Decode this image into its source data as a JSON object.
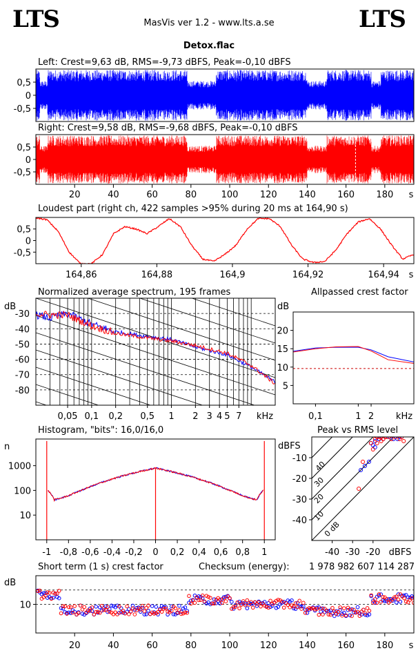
{
  "header": {
    "logo_left": "LTS",
    "logo_right": "LTS",
    "app_title": "MasVis ver 1.2 - www.lts.a.se",
    "file_name": "Detox.flac"
  },
  "chart_data": [
    {
      "id": "left",
      "type": "line",
      "title": "Left: Crest=9,63 dB, RMS=-9,73 dBFS, Peak=-0,10 dBFS",
      "series": [
        {
          "color": "#0000ff"
        }
      ],
      "ytick_labels": [
        "0,5",
        "0",
        "-0,5"
      ],
      "ylim": [
        -1,
        1
      ],
      "xlim": [
        0,
        195
      ],
      "quiet_segments_s": [
        [
          2,
          6
        ],
        [
          78,
          93
        ],
        [
          140,
          150
        ],
        [
          173,
          178
        ]
      ],
      "loud_envelope": 0.97,
      "quiet_envelope": 0.55
    },
    {
      "id": "right",
      "type": "line",
      "title": "Right: Crest=9,58 dB, RMS=-9,68 dBFS, Peak=-0,10 dBFS",
      "series": [
        {
          "color": "#ff0000"
        }
      ],
      "ytick_labels": [
        "0,5",
        "0",
        "-0,5"
      ],
      "ylim": [
        -1,
        1
      ],
      "xlim": [
        0,
        195
      ],
      "xticks": [
        20,
        40,
        60,
        80,
        100,
        120,
        140,
        160,
        180
      ],
      "tick_labels": [
        "20",
        "40",
        "60",
        "80",
        "100",
        "120",
        "140",
        "160",
        "180",
        "s"
      ],
      "loudest_marker_s": 164.9
    },
    {
      "id": "loudest",
      "type": "line",
      "title": "Loudest part (right ch, 422 samples >95% during 20 ms at 164,90 s)",
      "series": [
        {
          "color": "#ff0000"
        }
      ],
      "ytick_labels": [
        "0,5",
        "0",
        "-0,5"
      ],
      "xlim": [
        164.848,
        164.948
      ],
      "xticks": [
        164.86,
        164.88,
        164.9,
        164.92,
        164.94
      ],
      "tick_labels": [
        "164,86",
        "164,88",
        "164,9",
        "164,92",
        "164,94",
        "s"
      ],
      "waveform": [
        0.98,
        0.9,
        0.4,
        -0.5,
        -1.0,
        -1.0,
        -0.6,
        0.3,
        0.6,
        0.5,
        0.3,
        0.6,
        0.95,
        0.6,
        -0.2,
        -0.8,
        -0.9,
        -0.6,
        -0.2,
        0.5,
        0.95,
        0.95,
        0.6,
        -0.2,
        -0.8,
        -0.95,
        -0.9,
        -0.4,
        0.3,
        0.8,
        0.95,
        0.5,
        -0.2,
        -0.8,
        -0.6
      ]
    },
    {
      "id": "spectrum",
      "type": "line",
      "title": "Normalized average spectrum, 195 frames",
      "ylabel": "dB",
      "ytick_labels": [
        "-30",
        "-40",
        "-50",
        "-60",
        "-70",
        "-80"
      ],
      "yticks": [
        -30,
        -40,
        -50,
        -60,
        -70,
        -80
      ],
      "ylim": [
        -90,
        -20
      ],
      "x_khz_range": [
        0.02,
        20
      ],
      "xticks_khz": [
        0.05,
        0.1,
        0.2,
        0.5,
        1,
        2,
        3,
        4,
        5,
        7
      ],
      "tick_labels": [
        "0,05",
        "0,1",
        "0,2",
        "0,5",
        "1",
        "2",
        "3",
        "4",
        "5",
        "7",
        "kHz"
      ],
      "series": [
        {
          "color": "#0000ff",
          "x_khz": [
            0.02,
            0.03,
            0.05,
            0.1,
            0.2,
            0.5,
            1,
            2,
            5,
            10,
            20
          ],
          "db": [
            -31,
            -33,
            -30,
            -37,
            -42,
            -45,
            -47,
            -52,
            -57,
            -65,
            -75
          ]
        },
        {
          "color": "#ff0000",
          "x_khz": [
            0.02,
            0.03,
            0.05,
            0.1,
            0.2,
            0.5,
            1,
            2,
            5,
            10,
            20
          ],
          "db": [
            -30,
            -31,
            -31,
            -38,
            -43,
            -46,
            -48,
            -51,
            -56,
            -64,
            -76
          ]
        }
      ]
    },
    {
      "id": "allpass",
      "type": "line",
      "title": "Allpassed crest factor",
      "ylabel": "dB",
      "ytick_labels": [
        "20",
        "15",
        "10",
        "5"
      ],
      "yticks": [
        20,
        15,
        10,
        5
      ],
      "ylim": [
        0,
        25
      ],
      "x_khz_range": [
        0.03,
        20
      ],
      "tick_labels": [
        "0,1",
        "1",
        "2",
        "kHz"
      ],
      "reference_db": 9.6,
      "series": [
        {
          "color": "#0000ff",
          "x_khz": [
            0.03,
            0.1,
            0.3,
            1,
            2,
            5,
            20
          ],
          "db": [
            14.3,
            15.2,
            15.4,
            15.4,
            14.7,
            12.8,
            11.4
          ]
        },
        {
          "color": "#ff0000",
          "x_khz": [
            0.03,
            0.1,
            0.3,
            1,
            2,
            5,
            20
          ],
          "db": [
            14.1,
            15.0,
            15.5,
            15.6,
            14.4,
            12.0,
            11.0
          ]
        }
      ]
    },
    {
      "id": "histogram",
      "type": "line",
      "title": "Histogram, \"bits\": 16,0/16,0",
      "ylabel": "n",
      "ytick_labels": [
        "1000",
        "100",
        "10"
      ],
      "yticks": [
        1000,
        100,
        10
      ],
      "ylim": [
        1,
        12000
      ],
      "xlim": [
        -1.1,
        1.1
      ],
      "xticks": [
        -1,
        -0.8,
        -0.6,
        -0.4,
        -0.2,
        0,
        0.2,
        0.4,
        0.6,
        0.8,
        1
      ],
      "tick_labels": [
        "-1",
        "-0,8",
        "-0,6",
        "-0,4",
        "-0,2",
        "0",
        "0,2",
        "0,4",
        "0,6",
        "0,8",
        "1"
      ],
      "edge_spike": 10000,
      "center_value": 800,
      "min_value": 40
    },
    {
      "id": "peak_rms",
      "type": "scatter",
      "title": "Peak vs RMS level",
      "ylabel": "dBFS",
      "xlabel": "dBFS",
      "ytick_labels": [
        "-10",
        "-20",
        "-30",
        "-40"
      ],
      "yticks": [
        -10,
        -20,
        -30,
        -40
      ],
      "tick_labels": [
        "-40",
        "-30",
        "-20"
      ],
      "xticks": [
        -40,
        -30,
        -20
      ],
      "xlim": [
        -50,
        0
      ],
      "ylim": [
        -50,
        0
      ],
      "diagonal_labels": [
        "40",
        "30",
        "20",
        "10",
        "0 dB"
      ],
      "diagonal_offsets": [
        40,
        30,
        20,
        10,
        0
      ],
      "points": [
        {
          "color": "#0000ff",
          "rms": [
            -26,
            -24,
            -22,
            -20,
            -19,
            -18,
            -17,
            -16,
            -15,
            -14,
            -12,
            -10,
            -8,
            -7,
            -6,
            -21,
            -19,
            -17
          ],
          "peak": [
            -16,
            -14,
            -12,
            -4,
            -2,
            0,
            -1,
            0,
            -1,
            0,
            0,
            -1,
            -1,
            0,
            0,
            -3,
            -5,
            -1
          ]
        },
        {
          "color": "#ff0000",
          "rms": [
            -27,
            -25,
            -21,
            -19,
            -18,
            -17,
            -16,
            -15,
            -14,
            -13,
            -11,
            -9,
            -7,
            -6,
            -5,
            -20,
            -18,
            -16
          ],
          "peak": [
            -25,
            -12,
            -3,
            -1,
            0,
            0,
            -2,
            -1,
            0,
            0,
            -1,
            0,
            -1,
            0,
            -2,
            -6,
            -3,
            0
          ]
        }
      ]
    },
    {
      "id": "crest",
      "type": "scatter",
      "title": "Short term (1 s) crest factor",
      "checksum_label": "Checksum (energy):",
      "checksum_value": "1 978 982 607 114 287",
      "ylabel": "dB",
      "ytick_labels": [
        "10"
      ],
      "yticks": [
        10
      ],
      "ylim": [
        0,
        20
      ],
      "xlim": [
        0,
        195
      ],
      "reference_lines_db": [
        15,
        10
      ],
      "xticks": [
        20,
        40,
        60,
        80,
        100,
        120,
        140,
        160,
        180
      ],
      "tick_labels": [
        "20",
        "40",
        "60",
        "80",
        "100",
        "120",
        "140",
        "160",
        "180",
        "s"
      ],
      "segments": [
        {
          "range": [
            1,
            12
          ],
          "mean": 13.5
        },
        {
          "range": [
            13,
            78
          ],
          "mean": 8.0
        },
        {
          "range": [
            79,
            100
          ],
          "mean": 11.5
        },
        {
          "range": [
            101,
            138
          ],
          "mean": 10.0
        },
        {
          "range": [
            139,
            172
          ],
          "mean": 7.5
        },
        {
          "range": [
            173,
            195
          ],
          "mean": 12.0
        }
      ]
    }
  ]
}
